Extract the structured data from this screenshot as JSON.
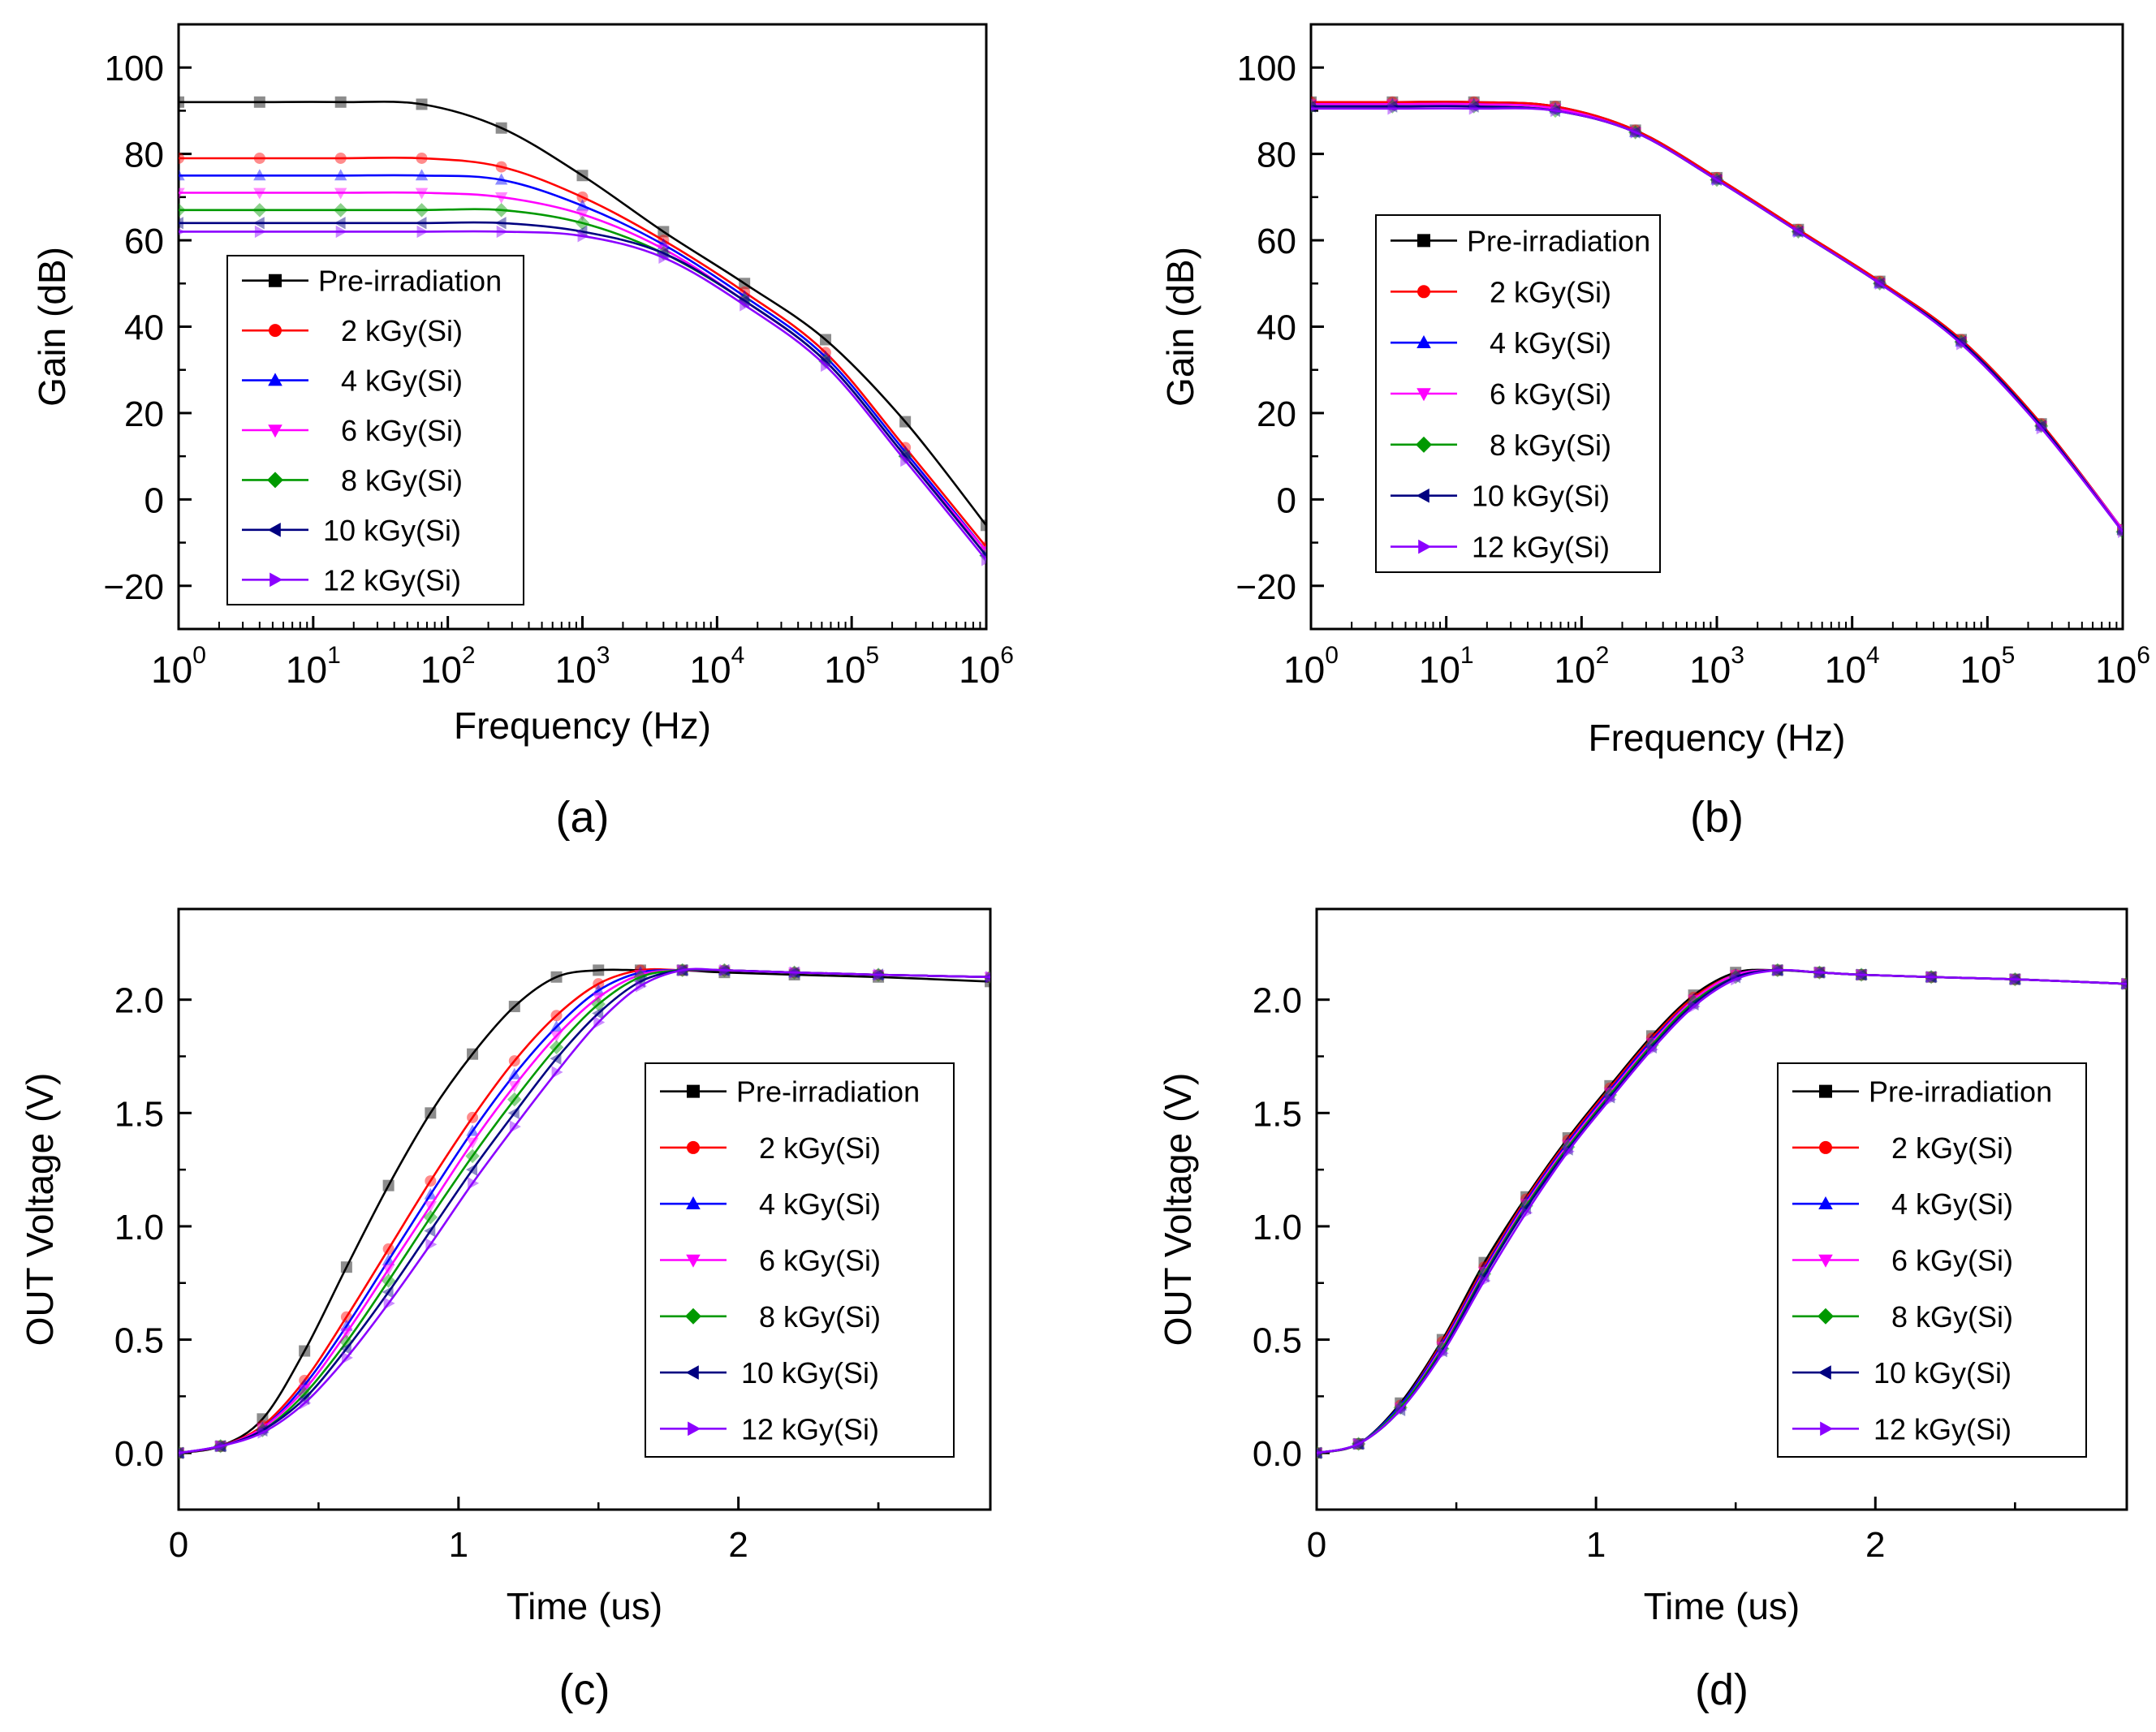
{
  "legend": {
    "entries": [
      "Pre-irradiation",
      "2 kGy(Si)",
      "4 kGy(Si)",
      "6 kGy(Si)",
      "8 kGy(Si)",
      "10 kGy(Si)",
      "12 kGy(Si)"
    ],
    "colors": [
      "#000000",
      "#ff0000",
      "#0000ff",
      "#ff00ff",
      "#009900",
      "#000080",
      "#8b00ff"
    ],
    "markers": [
      "square",
      "circle",
      "triangle-up",
      "triangle-down",
      "diamond",
      "triangle-left",
      "triangle-right"
    ]
  },
  "chart_data": [
    {
      "panel": "(a)",
      "type": "line",
      "xscale": "log",
      "xlabel": "Frequency (Hz)",
      "ylabel": "Gain (dB)",
      "xlim": [
        1,
        1000000
      ],
      "ylim": [
        -30,
        110
      ],
      "xticks": [
        1,
        10,
        100,
        1000,
        10000,
        100000,
        1000000
      ],
      "xtick_base": "10",
      "xtick_exps": [
        "0",
        "1",
        "2",
        "3",
        "4",
        "5",
        "6"
      ],
      "yticks": [
        -20,
        0,
        20,
        40,
        60,
        80,
        100
      ],
      "ytick_labels": [
        "−20",
        "0",
        "20",
        "40",
        "60",
        "80",
        "100"
      ],
      "x": [
        1,
        4,
        16,
        64,
        250,
        1000,
        4000,
        16000,
        64000,
        250000,
        1000000
      ],
      "series": [
        {
          "name": "Pre-irradiation",
          "values": [
            92,
            92,
            92,
            91.5,
            86,
            75,
            62,
            50,
            37,
            18,
            -6
          ]
        },
        {
          "name": "2 kGy(Si)",
          "values": [
            79,
            79,
            79,
            79,
            77,
            70,
            60,
            48,
            34,
            12,
            -11
          ]
        },
        {
          "name": "4 kGy(Si)",
          "values": [
            75,
            75,
            75,
            75,
            74,
            68,
            59,
            47,
            33,
            11,
            -12
          ]
        },
        {
          "name": "6 kGy(Si)",
          "values": [
            71,
            71,
            71,
            71,
            70,
            66,
            58,
            46,
            32,
            10,
            -12
          ]
        },
        {
          "name": "8 kGy(Si)",
          "values": [
            67,
            67,
            67,
            67,
            67,
            64,
            57,
            46,
            32,
            10,
            -13
          ]
        },
        {
          "name": "10 kGy(Si)",
          "values": [
            64,
            64,
            64,
            64,
            64,
            62,
            57,
            46,
            32,
            10,
            -13
          ]
        },
        {
          "name": "12 kGy(Si)",
          "values": [
            62,
            62,
            62,
            62,
            62,
            61,
            56,
            45,
            31,
            9,
            -14
          ]
        }
      ],
      "caption": "(a)"
    },
    {
      "panel": "(b)",
      "type": "line",
      "xscale": "log",
      "xlabel": "Frequency (Hz)",
      "ylabel": "Gain (dB)",
      "xlim": [
        1,
        1000000
      ],
      "ylim": [
        -30,
        110
      ],
      "xticks": [
        1,
        10,
        100,
        1000,
        10000,
        100000,
        1000000
      ],
      "xtick_base": "10",
      "xtick_exps": [
        "0",
        "1",
        "2",
        "3",
        "4",
        "5",
        "6"
      ],
      "yticks": [
        -20,
        0,
        20,
        40,
        60,
        80,
        100
      ],
      "ytick_labels": [
        "−20",
        "0",
        "20",
        "40",
        "60",
        "80",
        "100"
      ],
      "x": [
        1,
        4,
        16,
        64,
        250,
        1000,
        4000,
        16000,
        64000,
        250000,
        1000000
      ],
      "series": [
        {
          "name": "Pre-irradiation",
          "values": [
            92,
            92,
            92,
            91,
            85.5,
            74.5,
            62.5,
            50.5,
            37,
            17.5,
            -7
          ]
        },
        {
          "name": "2 kGy(Si)",
          "values": [
            92,
            92,
            92,
            91,
            85.5,
            74.5,
            62.5,
            50.5,
            37,
            17.5,
            -7
          ]
        },
        {
          "name": "4 kGy(Si)",
          "values": [
            91.5,
            91.5,
            91.5,
            90.5,
            85,
            74,
            62,
            50,
            36.5,
            17,
            -7
          ]
        },
        {
          "name": "6 kGy(Si)",
          "values": [
            91.5,
            91.5,
            91.5,
            90.5,
            85,
            74,
            62,
            50,
            36.5,
            17,
            -7
          ]
        },
        {
          "name": "8 kGy(Si)",
          "values": [
            91,
            91,
            91,
            90,
            85,
            74,
            62,
            50,
            36.5,
            17,
            -7.5
          ]
        },
        {
          "name": "10 kGy(Si)",
          "values": [
            91,
            91,
            91,
            90,
            85,
            74,
            62,
            50,
            36.5,
            17,
            -7.5
          ]
        },
        {
          "name": "12 kGy(Si)",
          "values": [
            90.5,
            90.5,
            90.5,
            90,
            85,
            74,
            62,
            50,
            36,
            16.5,
            -7.5
          ]
        }
      ],
      "caption": "(b)"
    },
    {
      "panel": "(c)",
      "type": "line",
      "xscale": "linear",
      "xlabel": "Time (us)",
      "ylabel": "OUT Voltage (V)",
      "xlim": [
        0,
        2.9
      ],
      "ylim": [
        -0.25,
        2.4
      ],
      "xticks": [
        0,
        1,
        2
      ],
      "xtick_labels": [
        "0",
        "1",
        "2"
      ],
      "yticks": [
        0,
        0.5,
        1,
        1.5,
        2
      ],
      "ytick_labels": [
        "0.0",
        "0.5",
        "1.0",
        "1.5",
        "2.0"
      ],
      "x": [
        0,
        0.15,
        0.3,
        0.45,
        0.6,
        0.75,
        0.9,
        1.05,
        1.2,
        1.35,
        1.5,
        1.65,
        1.8,
        1.95,
        2.2,
        2.5,
        2.9
      ],
      "series": [
        {
          "name": "Pre-irradiation",
          "values": [
            0,
            0.03,
            0.15,
            0.45,
            0.82,
            1.18,
            1.5,
            1.76,
            1.97,
            2.1,
            2.13,
            2.13,
            2.13,
            2.12,
            2.11,
            2.1,
            2.08
          ]
        },
        {
          "name": "2 kGy(Si)",
          "values": [
            0,
            0.03,
            0.12,
            0.32,
            0.6,
            0.9,
            1.2,
            1.48,
            1.73,
            1.93,
            2.07,
            2.13,
            2.13,
            2.13,
            2.12,
            2.11,
            2.1
          ]
        },
        {
          "name": "4 kGy(Si)",
          "values": [
            0,
            0.03,
            0.11,
            0.3,
            0.56,
            0.85,
            1.14,
            1.42,
            1.67,
            1.88,
            2.04,
            2.12,
            2.13,
            2.13,
            2.12,
            2.11,
            2.1
          ]
        },
        {
          "name": "6 kGy(Si)",
          "values": [
            0,
            0.03,
            0.11,
            0.28,
            0.53,
            0.81,
            1.09,
            1.37,
            1.62,
            1.84,
            2.01,
            2.11,
            2.13,
            2.13,
            2.12,
            2.11,
            2.1
          ]
        },
        {
          "name": "8 kGy(Si)",
          "values": [
            0,
            0.03,
            0.1,
            0.26,
            0.49,
            0.76,
            1.04,
            1.31,
            1.56,
            1.79,
            1.98,
            2.1,
            2.13,
            2.13,
            2.12,
            2.11,
            2.1
          ]
        },
        {
          "name": "10 kGy(Si)",
          "values": [
            0,
            0.03,
            0.1,
            0.24,
            0.46,
            0.71,
            0.98,
            1.25,
            1.5,
            1.74,
            1.94,
            2.08,
            2.13,
            2.13,
            2.12,
            2.11,
            2.1
          ]
        },
        {
          "name": "12 kGy(Si)",
          "values": [
            0,
            0.03,
            0.09,
            0.22,
            0.42,
            0.66,
            0.92,
            1.19,
            1.44,
            1.68,
            1.9,
            2.06,
            2.13,
            2.13,
            2.12,
            2.11,
            2.1
          ]
        }
      ],
      "caption": "(c)"
    },
    {
      "panel": "(d)",
      "type": "line",
      "xscale": "linear",
      "xlabel": "Time (us)",
      "ylabel": "OUT Voltage (V)",
      "xlim": [
        0,
        2.9
      ],
      "ylim": [
        -0.25,
        2.4
      ],
      "xticks": [
        0,
        1,
        2
      ],
      "xtick_labels": [
        "0",
        "1",
        "2"
      ],
      "yticks": [
        0,
        0.5,
        1,
        1.5,
        2
      ],
      "ytick_labels": [
        "0.0",
        "0.5",
        "1.0",
        "1.5",
        "2.0"
      ],
      "x": [
        0,
        0.15,
        0.3,
        0.45,
        0.6,
        0.75,
        0.9,
        1.05,
        1.2,
        1.35,
        1.5,
        1.65,
        1.8,
        1.95,
        2.2,
        2.5,
        2.9
      ],
      "series": [
        {
          "name": "Pre-irradiation",
          "values": [
            0,
            0.04,
            0.22,
            0.5,
            0.84,
            1.13,
            1.39,
            1.62,
            1.84,
            2.02,
            2.12,
            2.13,
            2.12,
            2.11,
            2.1,
            2.09,
            2.07
          ]
        },
        {
          "name": "2 kGy(Si)",
          "values": [
            0,
            0.04,
            0.21,
            0.49,
            0.82,
            1.12,
            1.38,
            1.61,
            1.83,
            2.01,
            2.11,
            2.13,
            2.12,
            2.11,
            2.1,
            2.09,
            2.07
          ]
        },
        {
          "name": "4 kGy(Si)",
          "values": [
            0,
            0.04,
            0.21,
            0.48,
            0.81,
            1.11,
            1.37,
            1.6,
            1.82,
            2.0,
            2.11,
            2.13,
            2.12,
            2.11,
            2.1,
            2.09,
            2.07
          ]
        },
        {
          "name": "6 kGy(Si)",
          "values": [
            0,
            0.04,
            0.2,
            0.47,
            0.8,
            1.1,
            1.36,
            1.59,
            1.81,
            2.0,
            2.11,
            2.13,
            2.12,
            2.11,
            2.1,
            2.09,
            2.07
          ]
        },
        {
          "name": "8 kGy(Si)",
          "values": [
            0,
            0.04,
            0.2,
            0.46,
            0.79,
            1.09,
            1.35,
            1.58,
            1.8,
            1.99,
            2.1,
            2.13,
            2.12,
            2.11,
            2.1,
            2.09,
            2.07
          ]
        },
        {
          "name": "10 kGy(Si)",
          "values": [
            0,
            0.04,
            0.19,
            0.45,
            0.78,
            1.08,
            1.34,
            1.57,
            1.79,
            1.98,
            2.1,
            2.13,
            2.12,
            2.11,
            2.1,
            2.09,
            2.07
          ]
        },
        {
          "name": "12 kGy(Si)",
          "values": [
            0,
            0.04,
            0.19,
            0.44,
            0.76,
            1.06,
            1.33,
            1.56,
            1.78,
            1.97,
            2.09,
            2.13,
            2.12,
            2.11,
            2.1,
            2.09,
            2.07
          ]
        }
      ],
      "caption": "(d)"
    }
  ]
}
